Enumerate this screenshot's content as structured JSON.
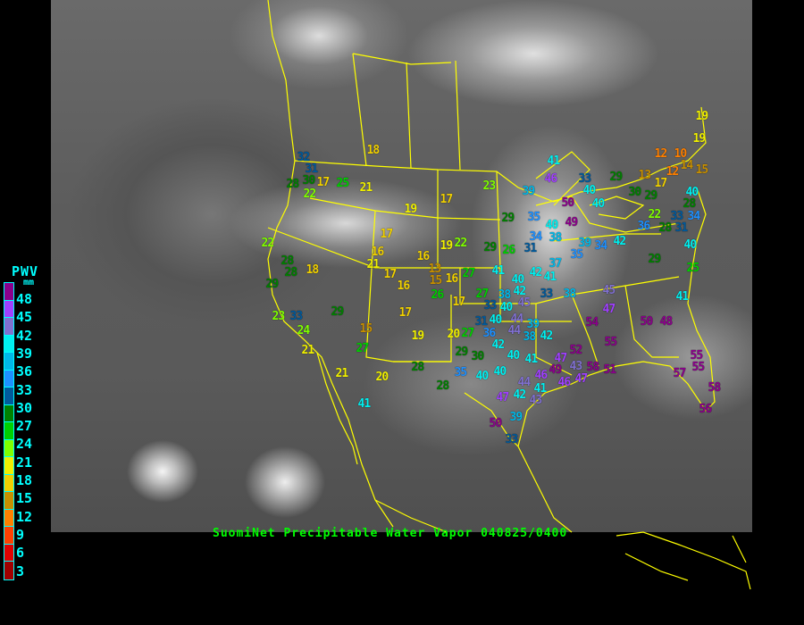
{
  "title": "SuomiNet Precipitable Water Vapor 040825/0400",
  "legend": {
    "title": "PWV",
    "unit": "mm",
    "ticks": [
      "48",
      "45",
      "42",
      "39",
      "36",
      "33",
      "30",
      "27",
      "24",
      "21",
      "18",
      "15",
      "12",
      "9",
      "6",
      "3"
    ],
    "colors": [
      "#8b008b",
      "#a040ff",
      "#8070d0",
      "#00f0f0",
      "#00b8e8",
      "#1e90ff",
      "#005a9c",
      "#008000",
      "#00d000",
      "#80ff00",
      "#f0f000",
      "#f0d000",
      "#c89000",
      "#ff8000",
      "#ff4000",
      "#e00000",
      "#a00000"
    ]
  },
  "stations": [
    18,
    32,
    31,
    30,
    28,
    17,
    22,
    25,
    21,
    19,
    17,
    23,
    29,
    22,
    17,
    28,
    28,
    18,
    16,
    21,
    17,
    16,
    13,
    15,
    16,
    19,
    22,
    29,
    26,
    27,
    29,
    16,
    26,
    17,
    23,
    33,
    24,
    29,
    15,
    17,
    19,
    27,
    21,
    21,
    20,
    28,
    28,
    41,
    20,
    27,
    41,
    40,
    42,
    41,
    33,
    38,
    27,
    33,
    38,
    40,
    42,
    45,
    40,
    44,
    31,
    36,
    44,
    39,
    38,
    42,
    42,
    29,
    30,
    35,
    40,
    40,
    40,
    41,
    44,
    42,
    41,
    43,
    47,
    50,
    39,
    33,
    45,
    47,
    54,
    55,
    50,
    48,
    41,
    52,
    47,
    49,
    43,
    46,
    46,
    47,
    58,
    51,
    57,
    55,
    55,
    58,
    56,
    25,
    41,
    46,
    39,
    33,
    40,
    50,
    40,
    35,
    40,
    49,
    34,
    31,
    38,
    39,
    34,
    35,
    37,
    42,
    29,
    13,
    17,
    30,
    29,
    12,
    10,
    14,
    12,
    15,
    19,
    19,
    40,
    28,
    22,
    33,
    34,
    36,
    28,
    31,
    40,
    29
  ]
}
